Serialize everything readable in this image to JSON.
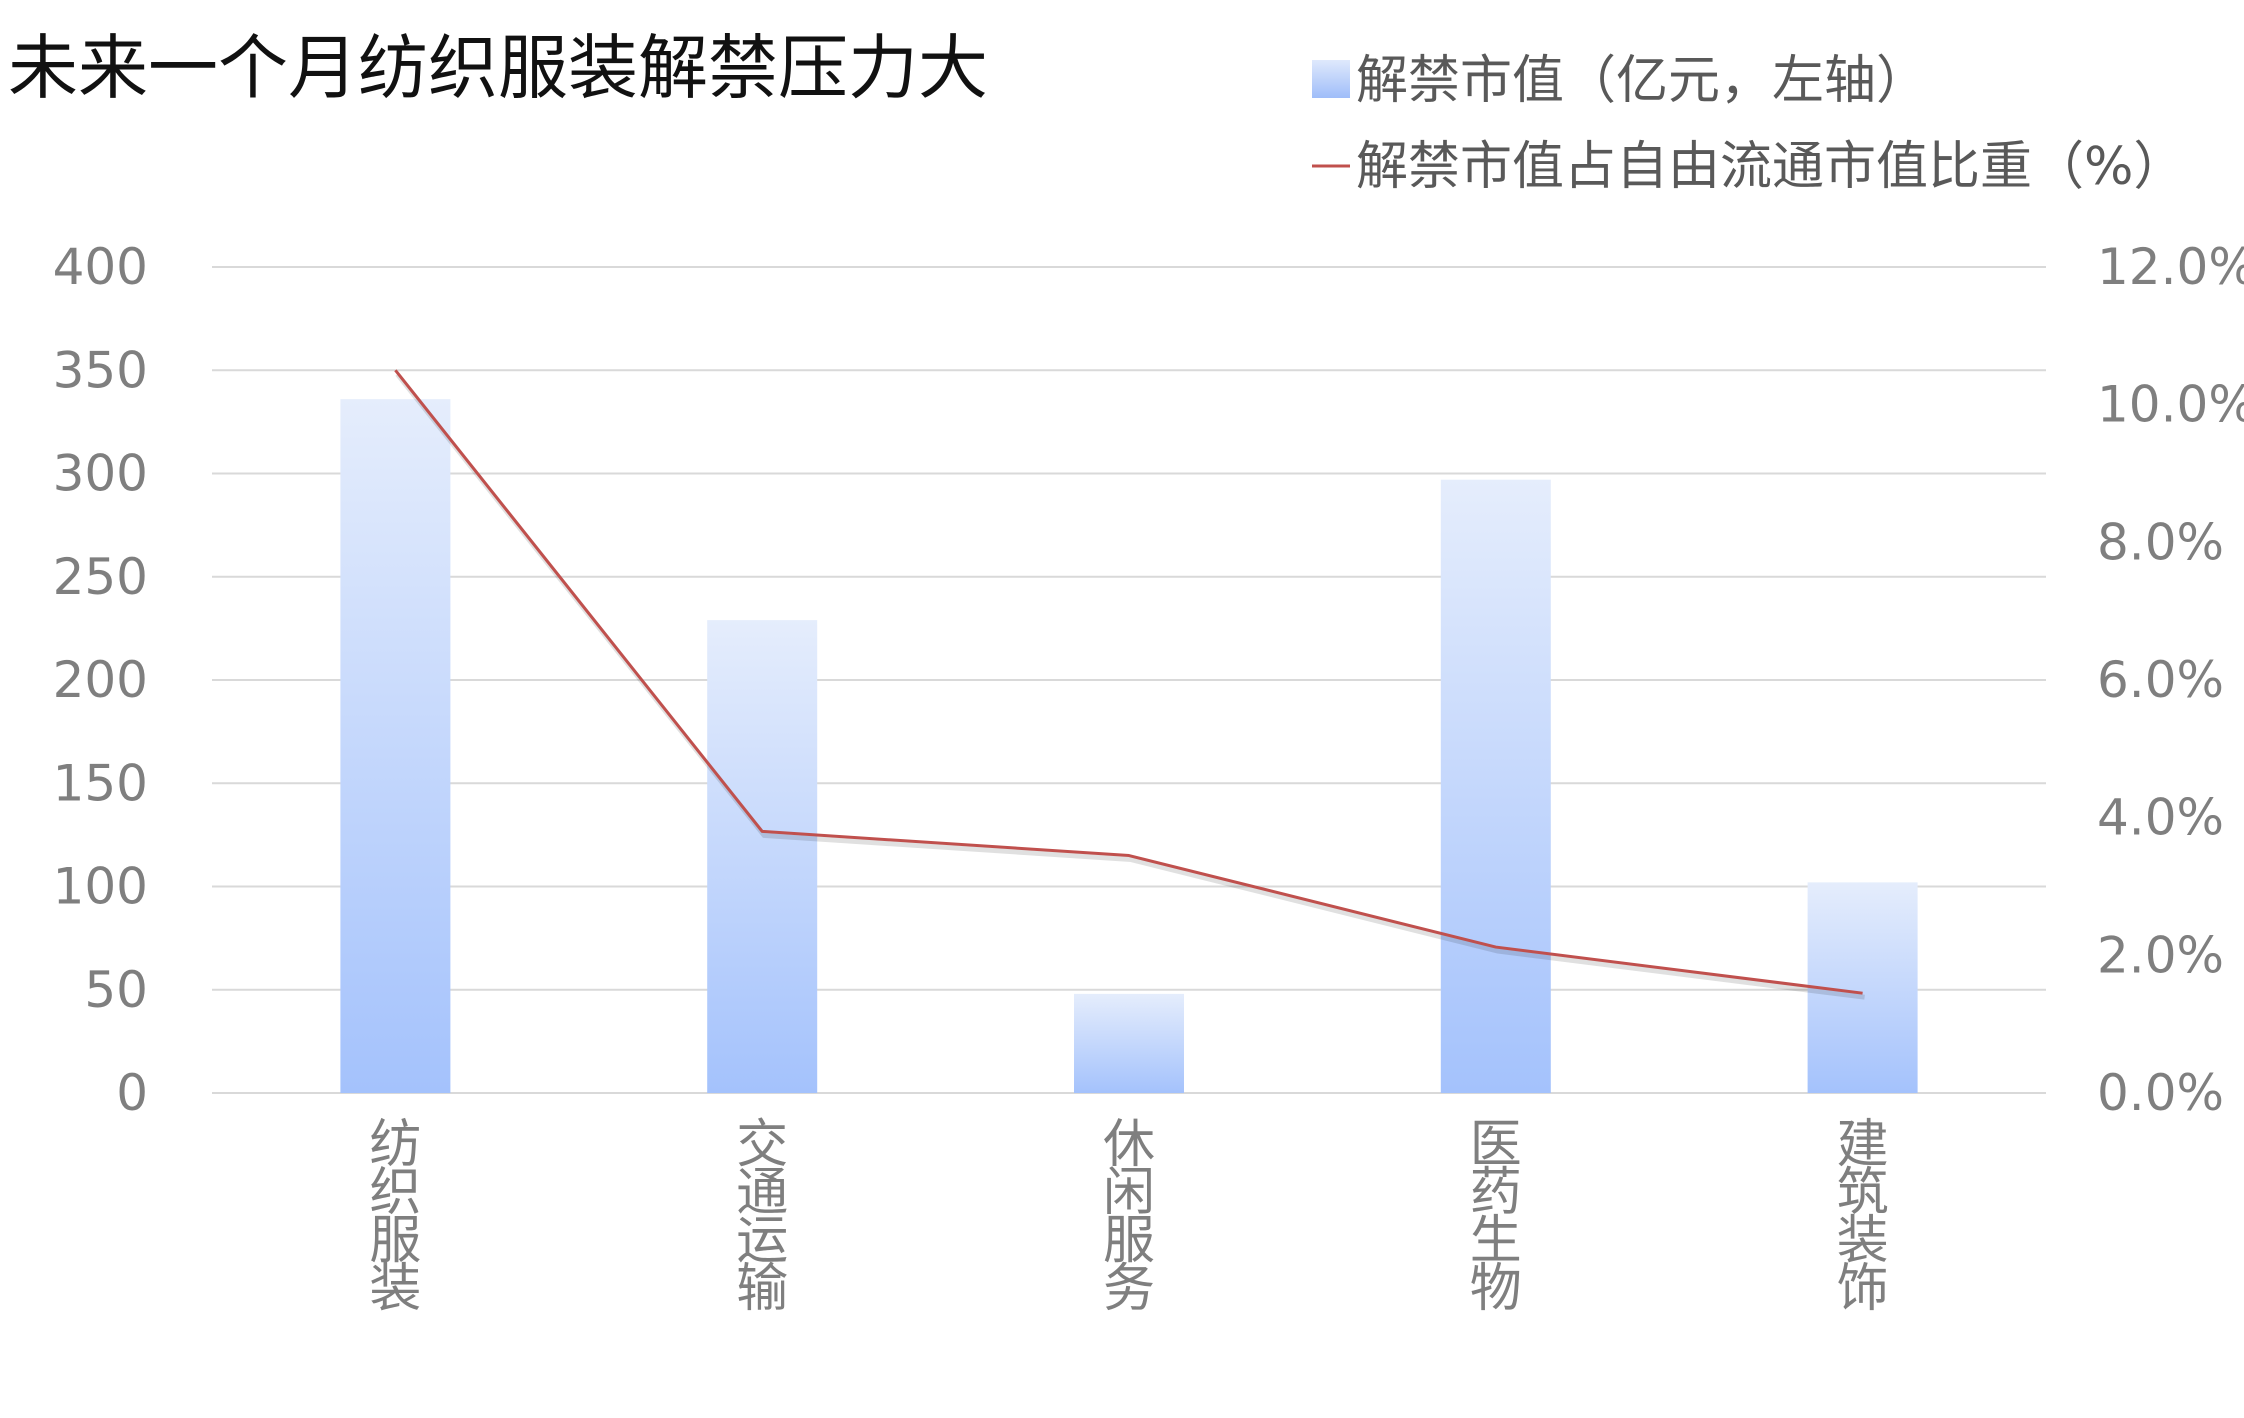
{
  "chart_data": {
    "type": "bar",
    "title": "未来一个月纺织服装解禁压力大",
    "categories": [
      "纺织服装",
      "交通运输",
      "休闲服务",
      "医药生物",
      "建筑装饰"
    ],
    "series": [
      {
        "name": "解禁市值（亿元，左轴）",
        "type": "bar",
        "axis": "left",
        "values": [
          336,
          229,
          48,
          297,
          102
        ]
      },
      {
        "name": "解禁市值占自由流通市值比重（%）",
        "type": "line",
        "axis": "right",
        "values": [
          0.105,
          0.038,
          0.0345,
          0.0212,
          0.0145
        ]
      }
    ],
    "left_axis": {
      "min": 0,
      "max": 400,
      "step": 50,
      "ticks": [
        "0",
        "50",
        "100",
        "150",
        "200",
        "250",
        "300",
        "350",
        "400"
      ]
    },
    "right_axis": {
      "min": 0,
      "max": 0.12,
      "step": 0.02,
      "ticks": [
        "0.0%",
        "2.0%",
        "4.0%",
        "6.0%",
        "8.0%",
        "10.0%",
        "12.0%"
      ]
    },
    "grid": true,
    "legend_position": "top-right",
    "colors": {
      "bar_top": "#e5edfc",
      "bar_bottom": "#a4c2fc",
      "line": "#c0504d",
      "grid": "#d9d9d9",
      "tick_text": "#7f7f7f"
    }
  }
}
